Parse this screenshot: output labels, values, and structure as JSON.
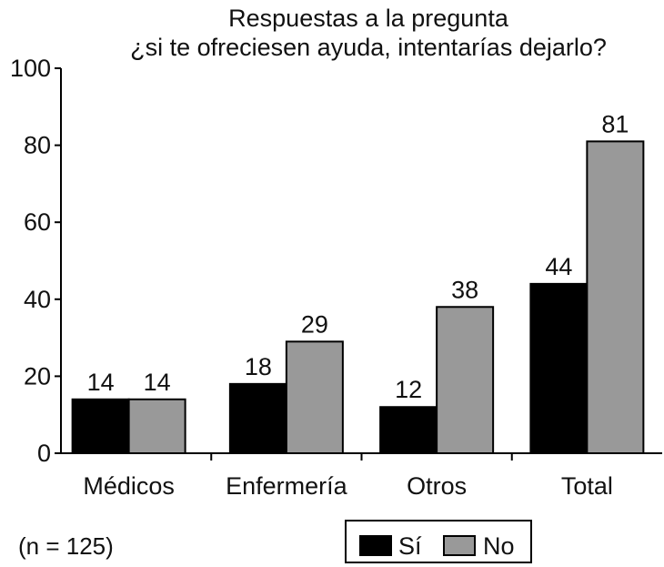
{
  "chart_data": {
    "type": "bar",
    "title": "Respuestas a la pregunta",
    "subtitle": "¿si te ofreciesen ayuda, intentarías dejarlo?",
    "categories": [
      "Médicos",
      "Enfermería",
      "Otros",
      "Total"
    ],
    "series": [
      {
        "name": "Sí",
        "values": [
          14,
          18,
          12,
          44
        ],
        "color": "#000000"
      },
      {
        "name": "No",
        "values": [
          14,
          29,
          38,
          81
        ],
        "color": "#999999"
      }
    ],
    "ylim": [
      0,
      100
    ],
    "yticks": [
      0,
      20,
      40,
      60,
      80,
      100
    ],
    "xlabel": "",
    "ylabel": "",
    "grid": false,
    "legend_position": "bottom-right",
    "note": "(n = 125)"
  }
}
